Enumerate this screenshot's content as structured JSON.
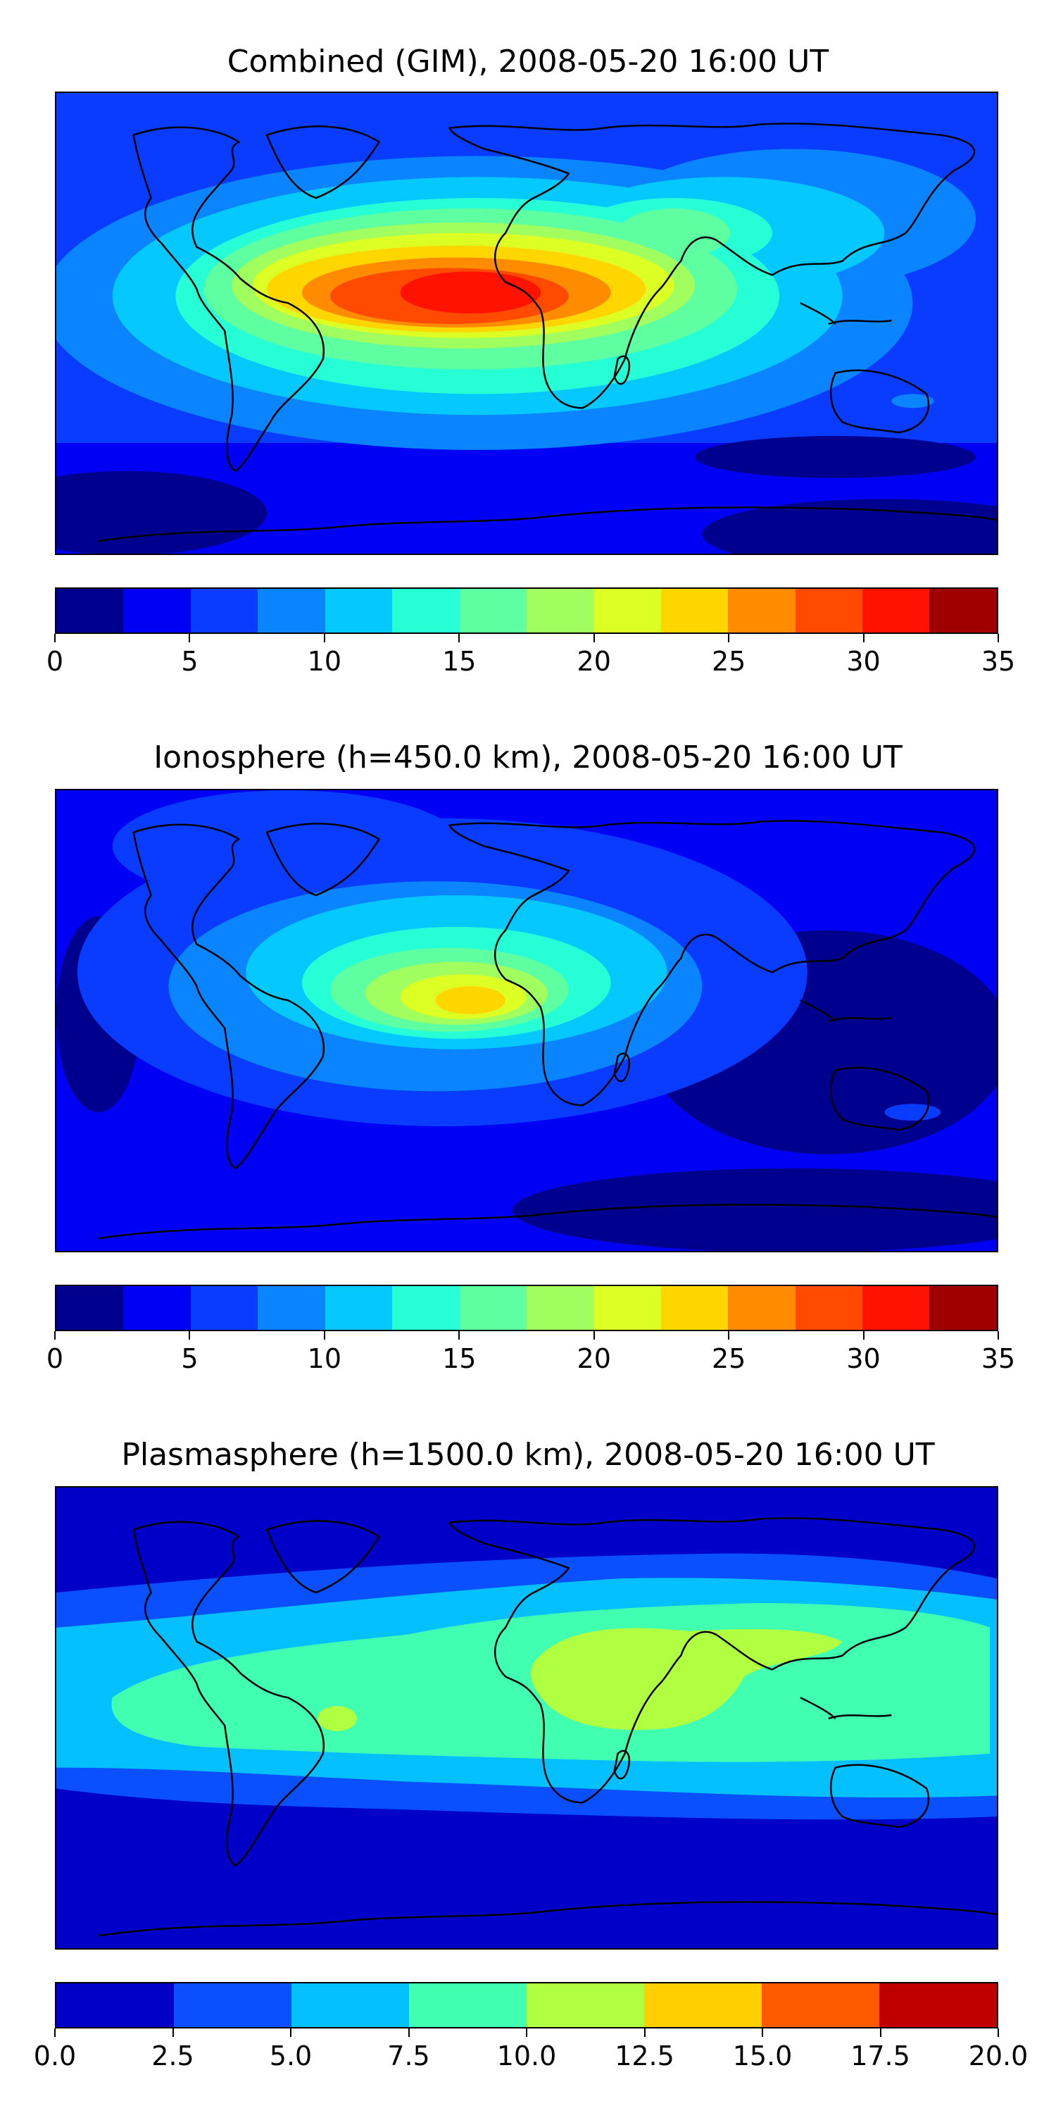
{
  "panels": [
    {
      "title": "Combined (GIM), 2008-05-20 16:00 UT",
      "colorbar": {
        "colors": [
          "#00008e",
          "#0000f5",
          "#0a3cff",
          "#0a84ff",
          "#05c8ff",
          "#26ffd6",
          "#5effa0",
          "#a0ff5e",
          "#dcff24",
          "#ffd600",
          "#ff8c00",
          "#ff4a00",
          "#ff1200",
          "#a00000"
        ],
        "ticks": [
          "0",
          "5",
          "10",
          "15",
          "20",
          "25",
          "30",
          "35"
        ]
      }
    },
    {
      "title": "Ionosphere  (h=450.0 km), 2008-05-20 16:00 UT",
      "colorbar": {
        "colors": [
          "#00008e",
          "#0000f5",
          "#0a3cff",
          "#0a84ff",
          "#05c8ff",
          "#26ffd6",
          "#5effa0",
          "#a0ff5e",
          "#dcff24",
          "#ffd600",
          "#ff8c00",
          "#ff4a00",
          "#ff1200",
          "#a00000"
        ],
        "ticks": [
          "0",
          "5",
          "10",
          "15",
          "20",
          "25",
          "30",
          "35"
        ]
      }
    },
    {
      "title": "Plasmasphere (h=1500.0 km), 2008-05-20 16:00 UT",
      "colorbar": {
        "colors": [
          "#0000c8",
          "#0a50ff",
          "#05c0ff",
          "#40ffb0",
          "#b0ff40",
          "#ffcf00",
          "#ff5a00",
          "#c00000"
        ],
        "ticks": [
          "0.0",
          "2.5",
          "5.0",
          "7.5",
          "10.0",
          "12.5",
          "15.0",
          "17.5",
          "20.0"
        ]
      }
    }
  ]
}
